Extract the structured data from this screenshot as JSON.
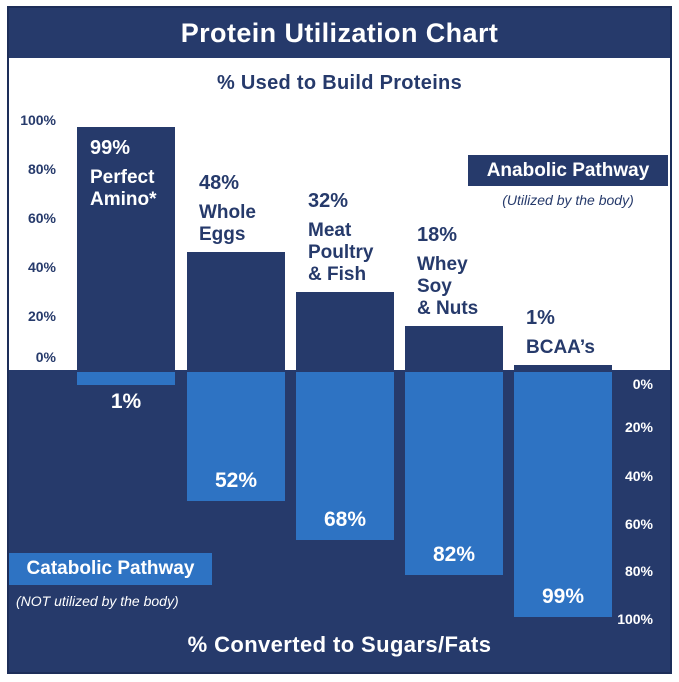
{
  "colors": {
    "navy": "#263a6b",
    "light_blue": "#2e73c3",
    "border": "#1d2e59",
    "white": "#ffffff"
  },
  "header": {
    "title": "Protein Utilization Chart"
  },
  "top_section_label": "% Used to Build Proteins",
  "bottom_section_label": "% Converted to Sugars/Fats",
  "left_axis_ticks": [
    "100%",
    "80%",
    "60%",
    "40%",
    "20%",
    "0%"
  ],
  "right_axis_ticks": [
    "0%",
    "20%",
    "40%",
    "60%",
    "80%",
    "100%"
  ],
  "anabolic": {
    "label": "Anabolic Pathway",
    "caption": "(Utilized by the body)"
  },
  "catabolic": {
    "label": "Catabolic Pathway",
    "caption": "(NOT utilized by the body)"
  },
  "bars": [
    {
      "category_lines": [
        "Perfect",
        "Amino*"
      ],
      "up_label": "99%",
      "up": 99,
      "down_label": "1%",
      "down": 1,
      "label_inside_bar": true
    },
    {
      "category_lines": [
        "Whole",
        "Eggs"
      ],
      "up_label": "48%",
      "up": 48,
      "down_label": "52%",
      "down": 52,
      "label_inside_bar": false
    },
    {
      "category_lines": [
        "Meat",
        "Poultry",
        "& Fish"
      ],
      "up_label": "32%",
      "up": 32,
      "down_label": "68%",
      "down": 68,
      "label_inside_bar": false
    },
    {
      "category_lines": [
        "Whey",
        "Soy",
        "& Nuts"
      ],
      "up_label": "18%",
      "up": 18,
      "down_label": "82%",
      "down": 82,
      "label_inside_bar": false
    },
    {
      "category_lines": [
        "BCAA’s"
      ],
      "up_label": "1%",
      "up": 1,
      "down_label": "99%",
      "down": 99,
      "label_inside_bar": false
    }
  ],
  "chart_data": {
    "type": "bar",
    "title": "Protein Utilization Chart",
    "subtitle_top": "% Used to Build Proteins",
    "subtitle_bottom": "% Converted to Sugars/Fats",
    "categories": [
      "Perfect Amino*",
      "Whole Eggs",
      "Meat Poultry & Fish",
      "Whey Soy & Nuts",
      "BCAA’s"
    ],
    "series": [
      {
        "name": "Anabolic Pathway (Utilized by the body)",
        "direction": "up",
        "color": "#263a6b",
        "values": [
          99,
          48,
          32,
          18,
          1
        ]
      },
      {
        "name": "Catabolic Pathway (NOT utilized by the body)",
        "direction": "down",
        "color": "#2e73c3",
        "values": [
          1,
          52,
          68,
          82,
          99
        ]
      }
    ],
    "ylabel_left": "% Used to Build Proteins (0–100%, bottom to top)",
    "ylabel_right": "% Converted to Sugars/Fats (0–100%, top to bottom)",
    "ylim": [
      0,
      100
    ],
    "grid": false,
    "legend_position": "inline-boxes"
  }
}
